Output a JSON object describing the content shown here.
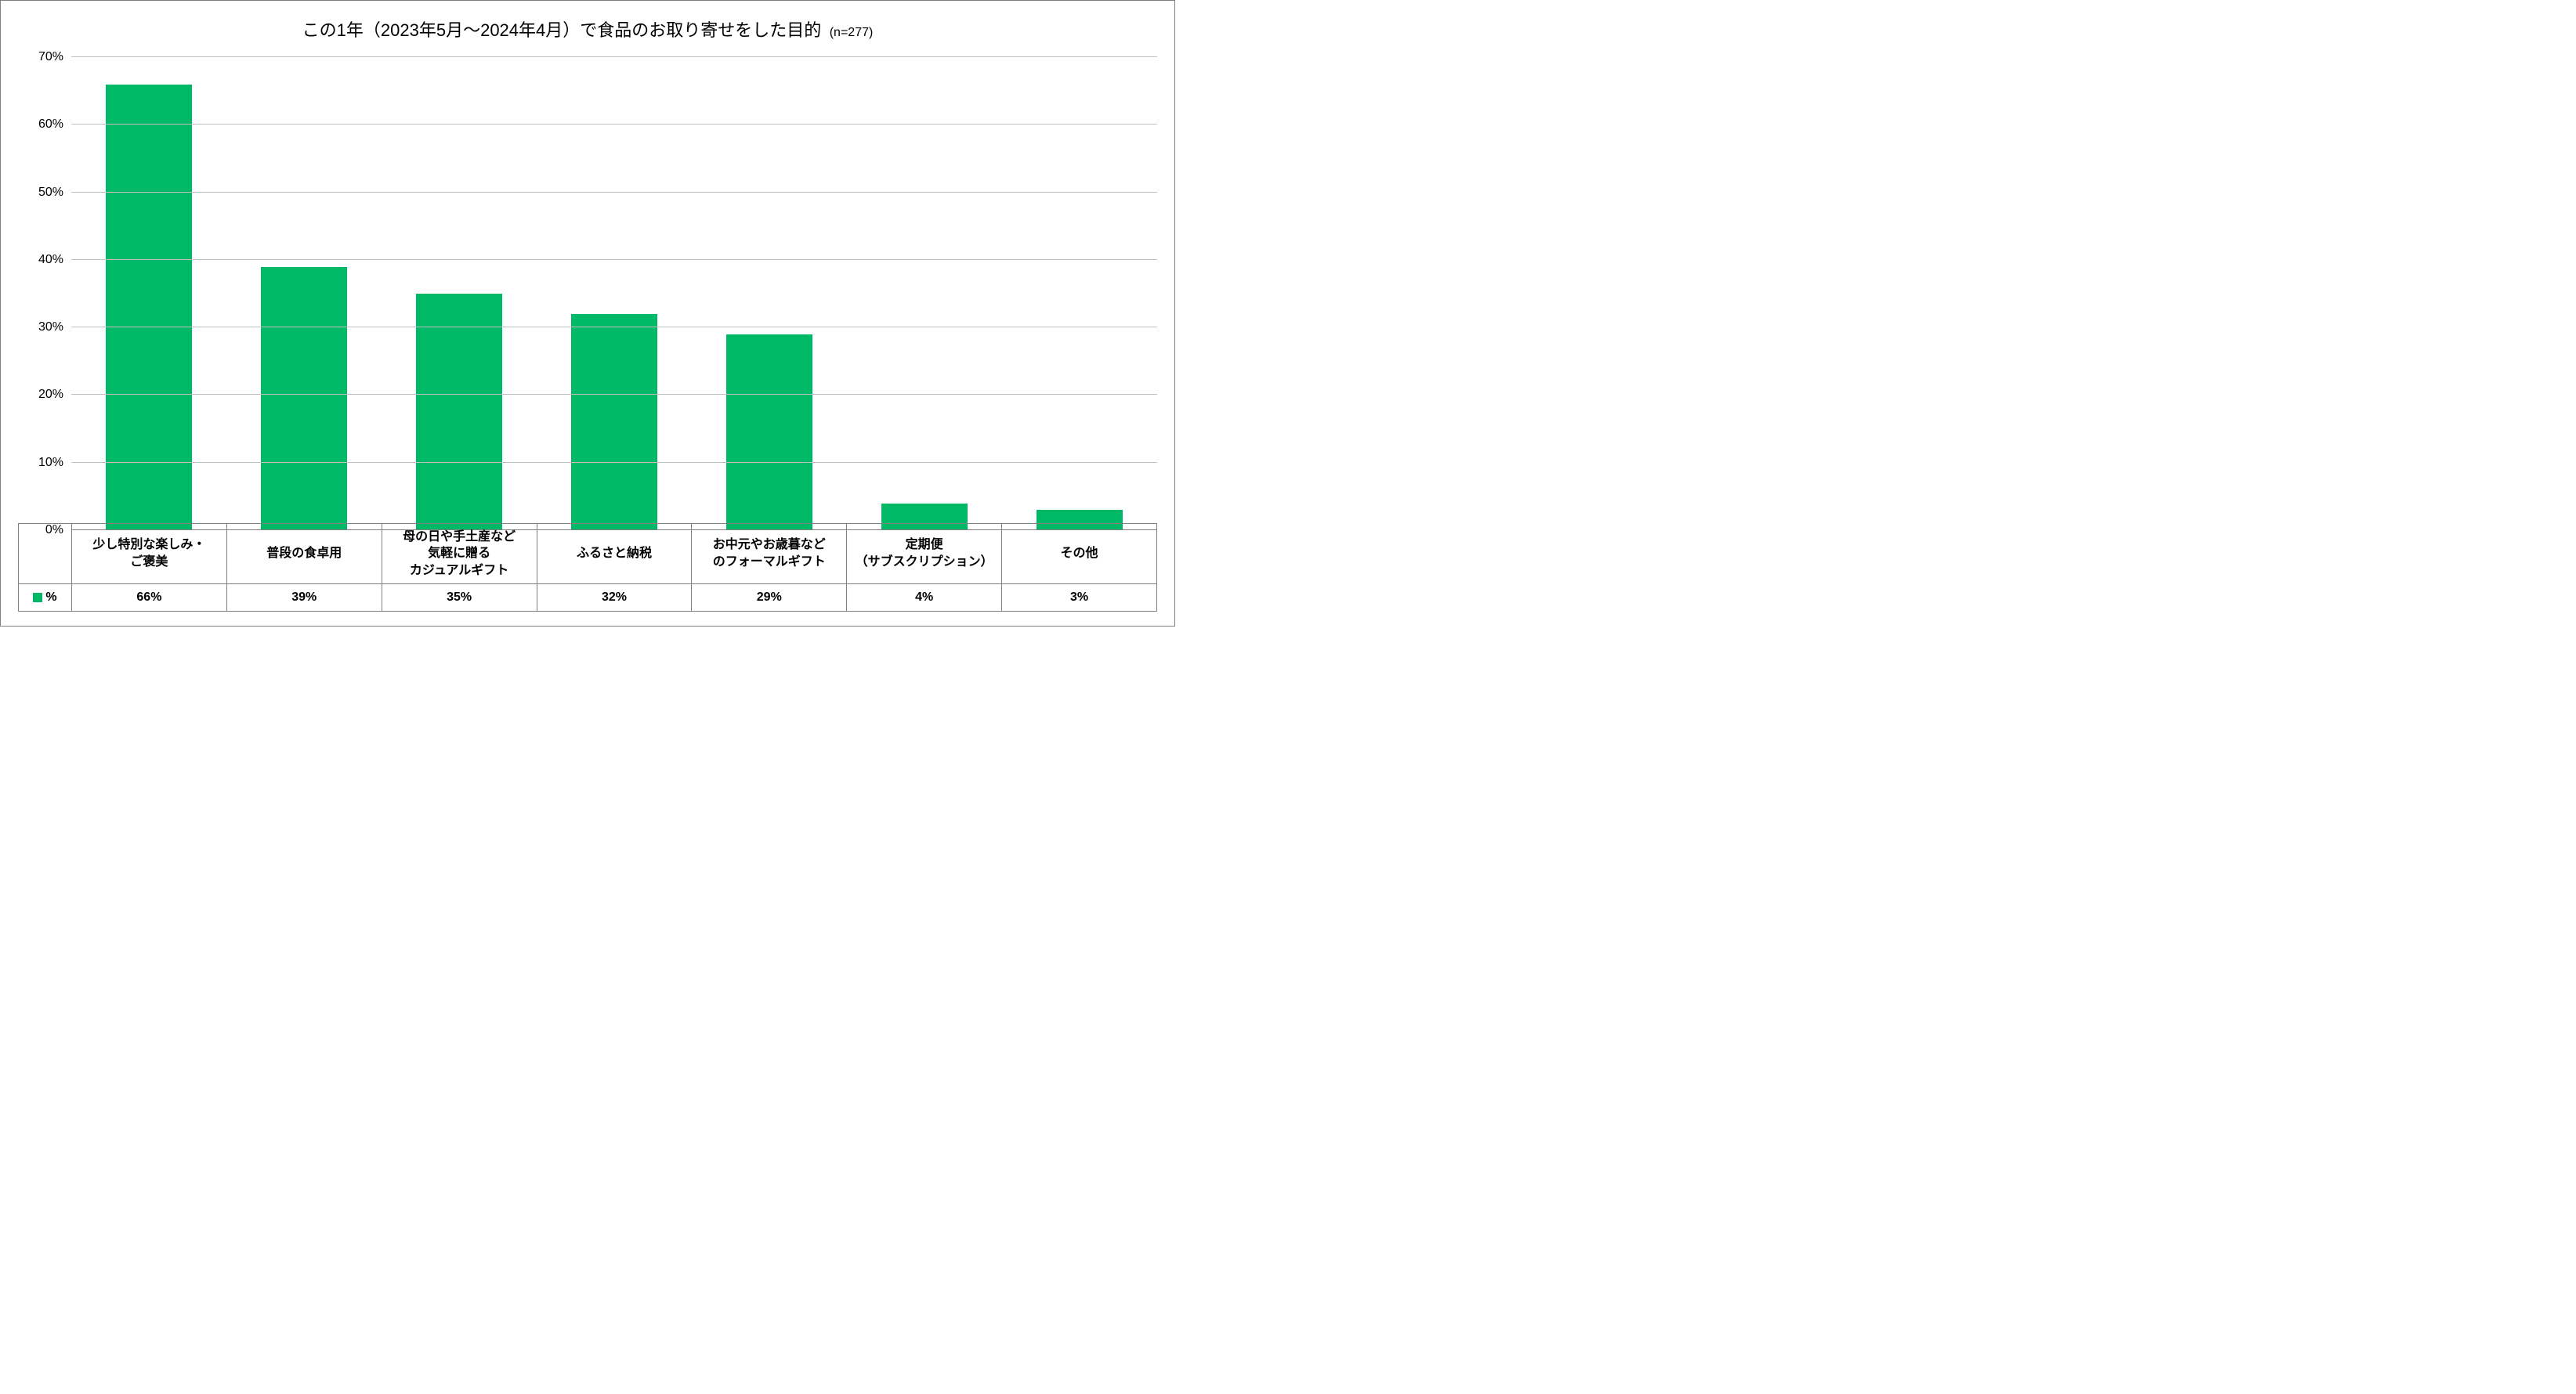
{
  "chart": {
    "type": "bar",
    "title": "この1年（2023年5月～2024年4月）で食品のお取り寄せをした目的",
    "subtitle": "(n=277)",
    "title_fontsize": 22,
    "subtitle_fontsize": 16,
    "categories": [
      "少し特別な楽しみ・\nご褒美",
      "普段の食卓用",
      "母の日や手土産など\n気軽に贈る\nカジュアルギフト",
      "ふるさと納税",
      "お中元やお歳暮など\nのフォーマルギフト",
      "定期便\n（サブスクリプション）",
      "その他"
    ],
    "values_display": [
      "66%",
      "39%",
      "35%",
      "32%",
      "29%",
      "4%",
      "3%"
    ],
    "values": [
      66,
      39,
      35,
      32,
      29,
      4,
      3
    ],
    "bar_color": "#00b966",
    "background_color": "#ffffff",
    "grid_color": "#bfbfbf",
    "border_color": "#808080",
    "ylim": [
      0,
      70
    ],
    "ytick_step": 10,
    "y_tick_labels": [
      "0%",
      "10%",
      "20%",
      "30%",
      "40%",
      "50%",
      "60%",
      "70%"
    ],
    "y_tick_values": [
      0,
      10,
      20,
      30,
      40,
      50,
      60,
      70
    ],
    "label_fontsize": 16,
    "legend_label": "%",
    "bar_width_ratio": 0.56
  }
}
